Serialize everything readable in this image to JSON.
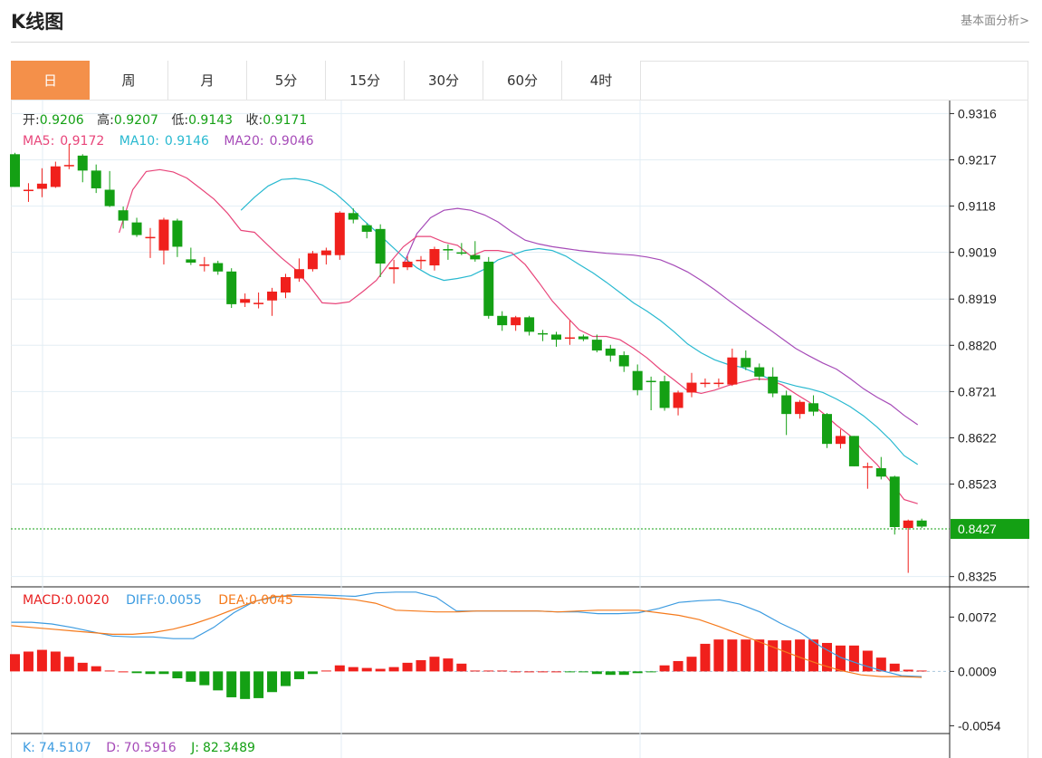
{
  "header": {
    "title": "K线图",
    "link": "基本面分析>"
  },
  "tabs": [
    "日",
    "周",
    "月",
    "5分",
    "15分",
    "30分",
    "60分",
    "4时"
  ],
  "active_tab": "日",
  "info": {
    "open_label": "开:",
    "open": "0.9206",
    "high_label": "高:",
    "high": "0.9207",
    "low_label": "低:",
    "low": "0.9143",
    "close_label": "收:",
    "close": "0.9171",
    "ma5_label": "MA5:",
    "ma5": "0.9172",
    "ma10_label": "MA10:",
    "ma10": "0.9146",
    "ma20_label": "MA20:",
    "ma20": "0.9046"
  },
  "macd_info": {
    "macd_label": "MACD:",
    "macd": "0.0020",
    "diff_label": "DIFF:",
    "diff": "0.0055",
    "dea_label": "DEA:",
    "dea": "0.0045"
  },
  "kdj_info": {
    "k_label": "K:",
    "k": "74.5107",
    "d_label": "D:",
    "d": "70.5916",
    "j_label": "J:",
    "j": "82.3489"
  },
  "current_price": "0.8427",
  "colors": {
    "up": "#f0201c",
    "down": "#14a014",
    "ma5": "#e8457a",
    "ma10": "#28b9d0",
    "ma20": "#a64bb8",
    "diff": "#3c9be0",
    "dea": "#f57a1c",
    "tab_active": "#f4904a",
    "price_tag": "#14a014"
  },
  "chart_data": [
    {
      "type": "candlestick",
      "y_ticks": [
        "0.9316",
        "0.9217",
        "0.9118",
        "0.9019",
        "0.8919",
        "0.8820",
        "0.8721",
        "0.8622",
        "0.8523",
        "0.8325"
      ],
      "ylim": [
        0.8305,
        0.9342
      ],
      "candles": [
        [
          0.9229,
          0.9159,
          0.9232,
          0.9159
        ],
        [
          0.9153,
          0.9153,
          0.9167,
          0.9127
        ],
        [
          0.9155,
          0.9166,
          0.9199,
          0.9137
        ],
        [
          0.9159,
          0.9203,
          0.9213,
          0.9157
        ],
        [
          0.9205,
          0.9206,
          0.9251,
          0.9197
        ],
        [
          0.9226,
          0.9194,
          0.9229,
          0.9169
        ],
        [
          0.9194,
          0.9156,
          0.9207,
          0.9146
        ],
        [
          0.9153,
          0.9118,
          0.9193,
          0.9116
        ],
        [
          0.9109,
          0.9087,
          0.9117,
          0.907
        ],
        [
          0.9083,
          0.9056,
          0.9093,
          0.9052
        ],
        [
          0.9051,
          0.9052,
          0.9071,
          0.9007
        ],
        [
          0.9023,
          0.9089,
          0.9093,
          0.8993
        ],
        [
          0.9087,
          0.9031,
          0.9091,
          0.9009
        ],
        [
          0.9004,
          0.8997,
          0.9029,
          0.8992
        ],
        [
          0.8993,
          0.8993,
          0.9009,
          0.8978
        ],
        [
          0.8996,
          0.8978,
          0.9001,
          0.8971
        ],
        [
          0.8978,
          0.8908,
          0.8985,
          0.89
        ],
        [
          0.8911,
          0.8919,
          0.8931,
          0.8902
        ],
        [
          0.8908,
          0.8911,
          0.8933,
          0.8899
        ],
        [
          0.8916,
          0.8935,
          0.8943,
          0.8883
        ],
        [
          0.8933,
          0.8966,
          0.8973,
          0.8921
        ],
        [
          0.8963,
          0.8983,
          0.9006,
          0.8956
        ],
        [
          0.8983,
          0.9017,
          0.9022,
          0.8978
        ],
        [
          0.9013,
          0.9023,
          0.9029,
          0.8993
        ],
        [
          0.9013,
          0.9104,
          0.9107,
          0.9003
        ],
        [
          0.9103,
          0.9089,
          0.9113,
          0.9081
        ],
        [
          0.9077,
          0.9063,
          0.9081,
          0.9049
        ],
        [
          0.9069,
          0.8995,
          0.9079,
          0.8966
        ],
        [
          0.8983,
          0.8987,
          0.9003,
          0.8952
        ],
        [
          0.8987,
          0.8999,
          0.9011,
          0.8981
        ],
        [
          0.9003,
          0.9003,
          0.9011,
          0.8983
        ],
        [
          0.8991,
          0.9026,
          0.9031,
          0.898
        ],
        [
          0.9026,
          0.9023,
          0.9036,
          0.9003
        ],
        [
          0.9019,
          0.9017,
          0.9039,
          0.9013
        ],
        [
          0.9013,
          0.9004,
          0.9043,
          0.8999
        ],
        [
          0.8999,
          0.8883,
          0.9009,
          0.8877
        ],
        [
          0.8883,
          0.8863,
          0.8893,
          0.8851
        ],
        [
          0.8863,
          0.888,
          0.8883,
          0.8851
        ],
        [
          0.888,
          0.8849,
          0.8883,
          0.8841
        ],
        [
          0.8846,
          0.8845,
          0.8853,
          0.8829
        ],
        [
          0.8843,
          0.8832,
          0.8849,
          0.8817
        ],
        [
          0.8836,
          0.8837,
          0.8873,
          0.8821
        ],
        [
          0.8839,
          0.8833,
          0.8843,
          0.8829
        ],
        [
          0.8832,
          0.8809,
          0.8843,
          0.8805
        ],
        [
          0.8813,
          0.8798,
          0.8821,
          0.8785
        ],
        [
          0.8799,
          0.8775,
          0.8807,
          0.8763
        ],
        [
          0.8765,
          0.8724,
          0.8779,
          0.8713
        ],
        [
          0.8744,
          0.8743,
          0.8753,
          0.8681
        ],
        [
          0.8743,
          0.8686,
          0.8755,
          0.868
        ],
        [
          0.8686,
          0.8719,
          0.8723,
          0.867
        ],
        [
          0.8719,
          0.874,
          0.8761,
          0.8709
        ],
        [
          0.8739,
          0.874,
          0.8749,
          0.873
        ],
        [
          0.8739,
          0.874,
          0.8749,
          0.873
        ],
        [
          0.8736,
          0.8794,
          0.8813,
          0.8733
        ],
        [
          0.8793,
          0.8773,
          0.8809,
          0.8767
        ],
        [
          0.8773,
          0.8753,
          0.8781,
          0.8745
        ],
        [
          0.8753,
          0.8717,
          0.8773,
          0.8709
        ],
        [
          0.8713,
          0.8673,
          0.8723,
          0.8628
        ],
        [
          0.8673,
          0.8699,
          0.8703,
          0.8663
        ],
        [
          0.8696,
          0.8678,
          0.8713,
          0.8669
        ],
        [
          0.8673,
          0.8609,
          0.8675,
          0.86
        ],
        [
          0.8609,
          0.8626,
          0.864,
          0.8599
        ],
        [
          0.8626,
          0.8561,
          0.8626,
          0.8561
        ],
        [
          0.8559,
          0.8561,
          0.8569,
          0.8513
        ],
        [
          0.8557,
          0.8539,
          0.8581,
          0.8533
        ],
        [
          0.8539,
          0.8431,
          0.8541,
          0.8415
        ],
        [
          0.8429,
          0.8445,
          0.8447,
          0.8333
        ],
        [
          0.8445,
          0.8432,
          0.8449,
          0.8429
        ]
      ],
      "ma5": [
        [
          0.9061,
          0.9153
        ],
        [
          0.9159,
          0.9192
        ],
        [
          0.9193,
          0.9196
        ],
        [
          0.9199,
          0.9191
        ],
        [
          0.9189,
          0.9178
        ],
        [
          0.9179,
          0.9156
        ],
        [
          0.9159,
          0.9133
        ],
        [
          0.9129,
          0.9103
        ],
        [
          0.9099,
          0.9066
        ],
        [
          0.9069,
          0.9062
        ],
        [
          0.9059,
          0.9034
        ],
        [
          0.9039,
          0.9007
        ],
        [
          0.9009,
          0.8983
        ],
        [
          0.8979,
          0.8949
        ],
        [
          0.8939,
          0.8911
        ],
        [
          0.8909,
          0.8909
        ],
        [
          0.8909,
          0.8913
        ],
        [
          0.8913,
          0.8935
        ],
        [
          0.8935,
          0.8959
        ],
        [
          0.8959,
          0.8997
        ],
        [
          0.8999,
          0.9031
        ],
        [
          0.9029,
          0.9053
        ],
        [
          0.9053,
          0.9053
        ],
        [
          0.9053,
          0.9041
        ],
        [
          0.9041,
          0.9034
        ],
        [
          0.9034,
          0.9011
        ],
        [
          0.9011,
          0.9023
        ],
        [
          0.9023,
          0.9023
        ],
        [
          0.9023,
          0.9018
        ],
        [
          0.9018,
          0.8993
        ],
        [
          0.8993,
          0.8955
        ],
        [
          0.8957,
          0.8915
        ],
        [
          0.8913,
          0.8883
        ],
        [
          0.8883,
          0.8853
        ],
        [
          0.8853,
          0.8839
        ],
        [
          0.8841,
          0.8839
        ],
        [
          0.8839,
          0.8832
        ],
        [
          0.8832,
          0.8814
        ],
        [
          0.8814,
          0.8793
        ],
        [
          0.8793,
          0.8768
        ],
        [
          0.8766,
          0.8746
        ],
        [
          0.8746,
          0.8723
        ],
        [
          0.8723,
          0.8717
        ],
        [
          0.8717,
          0.8724
        ],
        [
          0.8724,
          0.8734
        ],
        [
          0.8734,
          0.8741
        ],
        [
          0.8741,
          0.8748
        ],
        [
          0.8748,
          0.8747
        ],
        [
          0.8747,
          0.8735
        ],
        [
          0.8735,
          0.8716
        ],
        [
          0.8716,
          0.8698
        ],
        [
          0.8698,
          0.8675
        ],
        [
          0.8675,
          0.8649
        ],
        [
          0.8649,
          0.8627
        ],
        [
          0.8627,
          0.8593
        ],
        [
          0.8593,
          0.8565
        ],
        [
          0.8565,
          0.8528
        ],
        [
          0.8528,
          0.849
        ],
        [
          0.849,
          0.8481
        ]
      ],
      "ma10": [
        [
          0.9109,
          0.9137
        ],
        [
          0.9137,
          0.9161
        ],
        [
          0.9161,
          0.9175
        ],
        [
          0.9175,
          0.9177
        ],
        [
          0.9177,
          0.9173
        ],
        [
          0.9173,
          0.9163
        ],
        [
          0.9163,
          0.9145
        ],
        [
          0.9145,
          0.9119
        ],
        [
          0.9119,
          0.9089
        ],
        [
          0.9089,
          0.9063
        ],
        [
          0.9063,
          0.9036
        ],
        [
          0.9036,
          0.9009
        ],
        [
          0.9009,
          0.8986
        ],
        [
          0.8986,
          0.8969
        ],
        [
          0.8969,
          0.8959
        ],
        [
          0.8959,
          0.8963
        ],
        [
          0.8963,
          0.8969
        ],
        [
          0.8969,
          0.8983
        ],
        [
          0.8983,
          0.9003
        ],
        [
          0.9003,
          0.9013
        ],
        [
          0.9013,
          0.9023
        ],
        [
          0.9023,
          0.9027
        ],
        [
          0.9027,
          0.9023
        ],
        [
          0.9023,
          0.9011
        ],
        [
          0.9011,
          0.8993
        ],
        [
          0.8993,
          0.8975
        ],
        [
          0.8975,
          0.8955
        ],
        [
          0.8955,
          0.8933
        ],
        [
          0.8933,
          0.8911
        ],
        [
          0.8911,
          0.8893
        ],
        [
          0.8893,
          0.8873
        ],
        [
          0.8873,
          0.8849
        ],
        [
          0.8849,
          0.8823
        ],
        [
          0.8823,
          0.8804
        ],
        [
          0.8804,
          0.8789
        ],
        [
          0.8789,
          0.8779
        ],
        [
          0.8779,
          0.8773
        ],
        [
          0.8773,
          0.8761
        ],
        [
          0.8761,
          0.8749
        ],
        [
          0.8749,
          0.8741
        ],
        [
          0.8741,
          0.8733
        ],
        [
          0.8733,
          0.8727
        ],
        [
          0.8727,
          0.8719
        ],
        [
          0.8719,
          0.8705
        ],
        [
          0.8705,
          0.8689
        ],
        [
          0.8689,
          0.8669
        ],
        [
          0.8669,
          0.8645
        ],
        [
          0.8645,
          0.8617
        ],
        [
          0.8617,
          0.8584
        ],
        [
          0.8584,
          0.8565
        ]
      ],
      "ma20": [
        [
          0.8993,
          0.9059
        ],
        [
          0.9059,
          0.9093
        ],
        [
          0.9093,
          0.9109
        ],
        [
          0.9109,
          0.9113
        ],
        [
          0.9113,
          0.9109
        ],
        [
          0.9109,
          0.9099
        ],
        [
          0.9099,
          0.9084
        ],
        [
          0.9084,
          0.9063
        ],
        [
          0.9063,
          0.9045
        ],
        [
          0.9045,
          0.9037
        ],
        [
          0.9037,
          0.9031
        ],
        [
          0.9031,
          0.9027
        ],
        [
          0.9027,
          0.9023
        ],
        [
          0.9023,
          0.902
        ],
        [
          0.902,
          0.9017
        ],
        [
          0.9017,
          0.9015
        ],
        [
          0.9015,
          0.9013
        ],
        [
          0.9013,
          0.9009
        ],
        [
          0.9009,
          0.9003
        ],
        [
          0.9003,
          0.8991
        ],
        [
          0.8991,
          0.8977
        ],
        [
          0.8977,
          0.8959
        ],
        [
          0.8959,
          0.8939
        ],
        [
          0.8939,
          0.8917
        ],
        [
          0.8917,
          0.8896
        ],
        [
          0.8896,
          0.8875
        ],
        [
          0.8875,
          0.8855
        ],
        [
          0.8855,
          0.8834
        ],
        [
          0.8834,
          0.8813
        ],
        [
          0.8813,
          0.8797
        ],
        [
          0.8797,
          0.8782
        ],
        [
          0.8782,
          0.8769
        ],
        [
          0.8769,
          0.8749
        ],
        [
          0.8749,
          0.8727
        ],
        [
          0.8727,
          0.8709
        ],
        [
          0.8709,
          0.8693
        ],
        [
          0.8693,
          0.867
        ],
        [
          0.867,
          0.865
        ]
      ]
    },
    {
      "type": "macd",
      "y_ticks": [
        "0.0072",
        "0.0009",
        "-0.0054"
      ],
      "ylim": [
        -0.0062,
        0.0106
      ],
      "histogram": [
        0.002,
        0.0023,
        0.0025,
        0.0023,
        0.0017,
        0.001,
        0.0006,
        0.0001,
        0.0,
        -0.0002,
        -0.0003,
        -0.0003,
        -0.0008,
        -0.0012,
        -0.0016,
        -0.0022,
        -0.003,
        -0.0032,
        -0.0031,
        -0.0024,
        -0.0017,
        -0.0009,
        -0.0003,
        0.0001,
        0.0007,
        0.0005,
        0.0004,
        0.0003,
        0.0005,
        0.001,
        0.0013,
        0.0017,
        0.0015,
        0.0009,
        0.0001,
        0.0001,
        0.0001,
        0.0,
        0.0,
        0.0,
        0.0,
        -0.0001,
        -0.0001,
        -0.0003,
        -0.0004,
        -0.0004,
        -0.0002,
        -0.0001,
        0.0007,
        0.0012,
        0.0017,
        0.0032,
        0.0037,
        0.0037,
        0.0037,
        0.0037,
        0.0036,
        0.0036,
        0.0037,
        0.0037,
        0.0033,
        0.003,
        0.003,
        0.0024,
        0.0016,
        0.0009,
        0.0002,
        0.0001
      ],
      "diff": [
        0.0066,
        0.0066,
        0.0064,
        0.006,
        0.0055,
        0.005,
        0.0049,
        0.0049,
        0.0047,
        0.0047,
        0.006,
        0.0077,
        0.009,
        0.0095,
        0.0098,
        0.0098,
        0.0097,
        0.0096,
        0.01,
        0.0101,
        0.0101,
        0.0095,
        0.0079,
        0.0079,
        0.0079,
        0.0079,
        0.0079,
        0.0078,
        0.0078,
        0.0076,
        0.0076,
        0.0077,
        0.0082,
        0.0089,
        0.0091,
        0.0092,
        0.0087,
        0.0078,
        0.0065,
        0.0054,
        0.0038,
        0.0025,
        0.0017,
        0.001,
        0.0004,
        0.0003
      ],
      "dea": [
        0.0062,
        0.006,
        0.0058,
        0.0056,
        0.0054,
        0.0052,
        0.0052,
        0.0054,
        0.0058,
        0.0064,
        0.0072,
        0.0081,
        0.009,
        0.0096,
        0.0096,
        0.0095,
        0.0094,
        0.0092,
        0.0088,
        0.008,
        0.0079,
        0.0078,
        0.0078,
        0.0079,
        0.0079,
        0.0079,
        0.0079,
        0.0078,
        0.0079,
        0.008,
        0.008,
        0.008,
        0.0077,
        0.0074,
        0.0069,
        0.0061,
        0.0052,
        0.0043,
        0.0034,
        0.0025,
        0.0017,
        0.001,
        0.0005,
        0.0003,
        0.0003,
        0.0002
      ]
    }
  ]
}
